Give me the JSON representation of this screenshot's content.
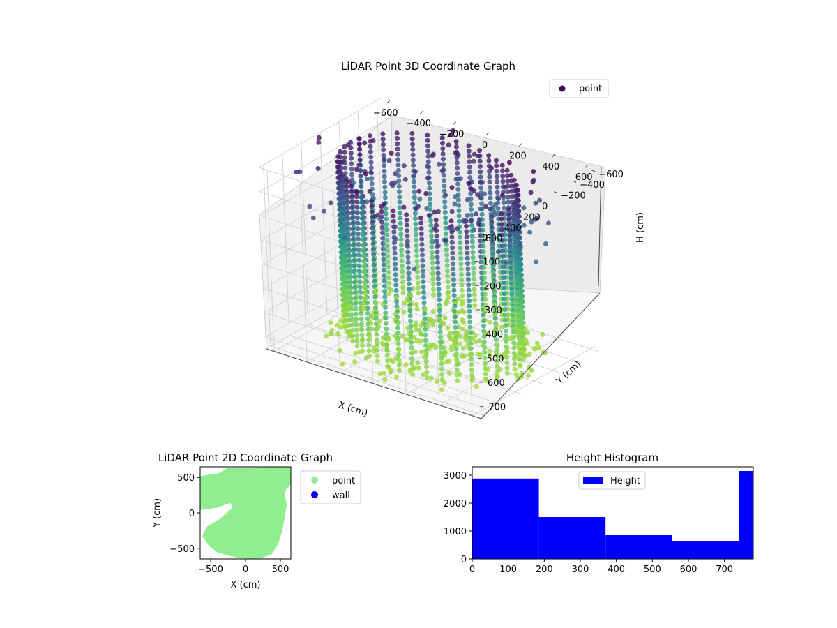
{
  "chart_data": [
    {
      "type": "scatter3d",
      "title": "LiDAR Point 3D Coordinate Graph",
      "xlabel": "X (cm)",
      "ylabel": "Y (cm)",
      "zlabel": "H (cm)",
      "legend": {
        "entries": [
          "point"
        ],
        "placement": "top-right"
      },
      "colormap": "viridis",
      "xlim": [
        -650,
        650
      ],
      "ylim": [
        -650,
        650
      ],
      "zlim": [
        0,
        750
      ],
      "z_inverted": true,
      "x_ticks": [
        "−600",
        "−400",
        "−200",
        "0",
        "200",
        "400",
        "600"
      ],
      "y_ticks": [
        "−600",
        "−400",
        "−200",
        "0",
        "200",
        "400",
        "600"
      ],
      "z_ticks": [
        "0",
        "100",
        "200",
        "300",
        "400",
        "500",
        "600",
        "700"
      ],
      "grid": true,
      "series": [
        {
          "name": "point",
          "color": "#440154"
        }
      ]
    },
    {
      "type": "scatter",
      "title": "LiDAR Point 2D Coordinate Graph",
      "xlabel": "X (cm)",
      "ylabel": "Y (cm)",
      "xlim": [
        -650,
        650
      ],
      "ylim": [
        -650,
        650
      ],
      "x_ticks": [
        "−500",
        "0",
        "500"
      ],
      "y_ticks": [
        "−500",
        "0",
        "500"
      ],
      "legend": {
        "placement": "outside-right"
      },
      "series": [
        {
          "name": "point",
          "color": "#90ee90"
        },
        {
          "name": "wall",
          "color": "#0000ff"
        }
      ]
    },
    {
      "type": "bar",
      "title": "Height Histogram",
      "legend": {
        "entries": [
          "Height"
        ],
        "placement": "top-center"
      },
      "bin_edges": [
        0,
        185,
        370,
        555,
        740,
        780
      ],
      "series": [
        {
          "name": "Height",
          "values": [
            2880,
            1500,
            850,
            650,
            3150
          ],
          "color": "#0000ff"
        }
      ],
      "xlim": [
        0,
        780
      ],
      "ylim": [
        0,
        3300
      ],
      "x_ticks": [
        "0",
        "100",
        "200",
        "300",
        "400",
        "500",
        "600",
        "700"
      ],
      "y_ticks": [
        "0",
        "1000",
        "2000",
        "3000"
      ]
    }
  ]
}
